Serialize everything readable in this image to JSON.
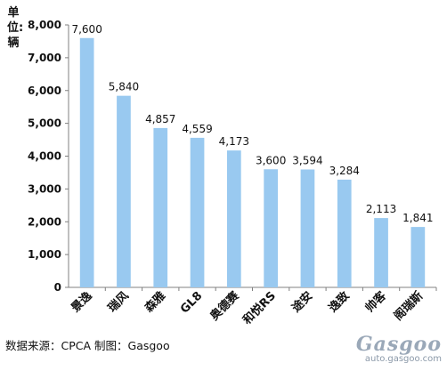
{
  "chart_data": {
    "type": "bar",
    "categories": [
      "景逸",
      "瑞风",
      "森雅",
      "GL8",
      "奥德赛",
      "和悦RS",
      "途安",
      "逸致",
      "帅客",
      "阁瑞斯"
    ],
    "values": [
      7600,
      5840,
      4857,
      4559,
      4173,
      3600,
      3594,
      3284,
      2113,
      1841
    ],
    "value_labels": [
      "7,600",
      "5,840",
      "4,857",
      "4,559",
      "4,173",
      "3,600",
      "3,594",
      "3,284",
      "2,113",
      "1,841"
    ],
    "ylabel": "单位:辆",
    "ylim": [
      0,
      8000
    ],
    "yticks": [
      0,
      1000,
      2000,
      3000,
      4000,
      5000,
      6000,
      7000,
      8000
    ],
    "ytick_labels": [
      "0",
      "1,000",
      "2,000",
      "3,000",
      "4,000",
      "5,000",
      "6,000",
      "7,000",
      "8,000"
    ],
    "grid": false,
    "bar_color": "#99c9f0"
  },
  "source_note": "数据来源：CPCA  制图：Gasgoo",
  "watermark": {
    "logo": "Gasgoo",
    "url": "auto.gasgoo.com"
  }
}
